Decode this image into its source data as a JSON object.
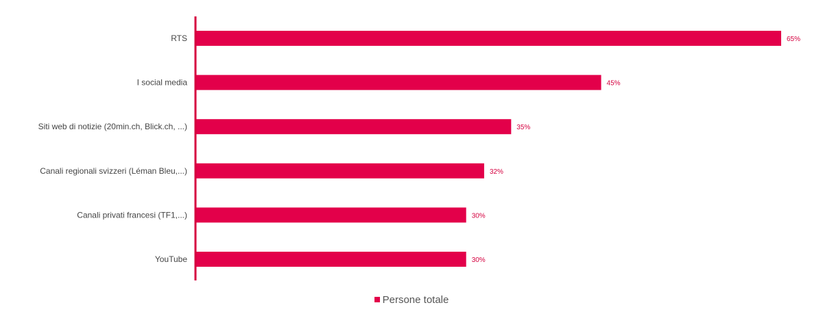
{
  "chart_data": {
    "type": "bar",
    "orientation": "horizontal",
    "categories": [
      "RTS",
      "I social media",
      "Siti web di notizie (20min.ch, Blick.ch, ...)",
      "Canali regionali svizzeri (Léman Bleu,...)",
      "Canali privati francesi (TF1,...)",
      "YouTube"
    ],
    "series": [
      {
        "name": "Persone totale",
        "values": [
          65,
          45,
          35,
          32,
          30,
          30
        ],
        "color": "#e3004a"
      }
    ],
    "value_labels": [
      "65%",
      "45%",
      "35%",
      "32%",
      "30%",
      "30%"
    ],
    "xlim": [
      0,
      65
    ],
    "grid": false,
    "legend": {
      "position": "bottom-center",
      "label": "Persone totale"
    },
    "colors": {
      "bar": "#e3004a",
      "axis": "#d5003f",
      "value_text": "#d5003f",
      "category_text": "#444444"
    }
  }
}
